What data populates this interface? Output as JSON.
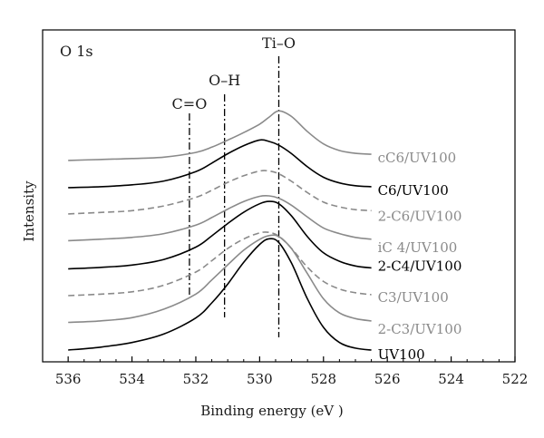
{
  "chart_data": {
    "type": "line",
    "title": "",
    "panel_label": "O 1s",
    "xlabel": "Binding energy (eV )",
    "ylabel": "Intensity",
    "xlim": [
      536.8,
      522
    ],
    "x_reversed": true,
    "x_ticks": [
      536,
      534,
      532,
      530,
      528,
      526,
      524,
      522
    ],
    "y_ticks": [],
    "grid": false,
    "legend": "none",
    "colors": {
      "dark": "#000000",
      "gray": "#8a8a8a",
      "dashed": "#8a8a8a"
    },
    "markers": [
      {
        "label": "Ti–O",
        "x": 529.4
      },
      {
        "label": "O–H",
        "x": 531.1
      },
      {
        "label": "C=O",
        "x": 532.2
      }
    ],
    "series": [
      {
        "name": "cC6/UV100",
        "color": "#8a8a8a",
        "dashed": false,
        "offset": 7,
        "x": [
          536.0,
          535.0,
          534.0,
          533.0,
          532.0,
          531.5,
          531.0,
          530.5,
          530.0,
          529.7,
          529.4,
          529.0,
          528.5,
          528.0,
          527.5,
          527.0,
          526.5
        ],
        "y": [
          0.05,
          0.07,
          0.09,
          0.12,
          0.22,
          0.33,
          0.48,
          0.64,
          0.82,
          0.97,
          1.1,
          0.98,
          0.66,
          0.4,
          0.26,
          0.2,
          0.18
        ]
      },
      {
        "name": "C6/UV100",
        "color": "#000000",
        "dashed": false,
        "offset": 6,
        "x": [
          536.0,
          535.0,
          534.0,
          533.0,
          532.0,
          531.5,
          531.0,
          530.5,
          530.0,
          529.7,
          529.4,
          529.0,
          528.5,
          528.0,
          527.5,
          527.0,
          526.5
        ],
        "y": [
          0.04,
          0.06,
          0.1,
          0.18,
          0.38,
          0.56,
          0.76,
          0.93,
          1.05,
          1.02,
          0.94,
          0.76,
          0.48,
          0.26,
          0.14,
          0.08,
          0.06
        ]
      },
      {
        "name": "2-C6/UV100",
        "color": "#8a8a8a",
        "dashed": true,
        "offset": 5,
        "x": [
          536.0,
          535.0,
          534.0,
          533.0,
          532.0,
          531.5,
          531.0,
          530.5,
          530.0,
          529.7,
          529.4,
          529.0,
          528.5,
          528.0,
          527.5,
          527.0,
          526.5
        ],
        "y": [
          0.05,
          0.08,
          0.12,
          0.22,
          0.4,
          0.55,
          0.72,
          0.86,
          0.96,
          0.96,
          0.9,
          0.74,
          0.5,
          0.3,
          0.2,
          0.14,
          0.12
        ]
      },
      {
        "name": "iC 4/UV100",
        "color": "#8a8a8a",
        "dashed": false,
        "offset": 4,
        "x": [
          536.0,
          535.0,
          534.0,
          533.0,
          532.0,
          531.5,
          531.0,
          530.5,
          530.0,
          529.7,
          529.4,
          529.0,
          528.5,
          528.0,
          527.5,
          527.0,
          526.5
        ],
        "y": [
          0.05,
          0.08,
          0.12,
          0.2,
          0.38,
          0.54,
          0.72,
          0.88,
          0.99,
          1.0,
          0.95,
          0.8,
          0.55,
          0.32,
          0.2,
          0.12,
          0.08
        ]
      },
      {
        "name": "2-C4/UV100",
        "color": "#000000",
        "dashed": false,
        "offset": 3,
        "x": [
          536.0,
          535.0,
          534.0,
          533.0,
          532.0,
          531.5,
          531.0,
          530.5,
          530.0,
          529.7,
          529.4,
          529.0,
          528.5,
          528.0,
          527.5,
          527.0,
          526.5
        ],
        "y": [
          0.02,
          0.05,
          0.1,
          0.22,
          0.48,
          0.72,
          0.98,
          1.22,
          1.4,
          1.45,
          1.4,
          1.14,
          0.7,
          0.36,
          0.18,
          0.08,
          0.04
        ]
      },
      {
        "name": "C3/UV100",
        "color": "#8a8a8a",
        "dashed": true,
        "offset": 2,
        "x": [
          536.0,
          535.0,
          534.0,
          533.0,
          532.0,
          531.5,
          531.0,
          530.5,
          530.0,
          529.7,
          529.4,
          529.0,
          528.5,
          528.0,
          527.5,
          527.0,
          526.5
        ],
        "y": [
          0.02,
          0.05,
          0.1,
          0.24,
          0.52,
          0.76,
          1.02,
          1.22,
          1.35,
          1.36,
          1.28,
          1.02,
          0.62,
          0.32,
          0.16,
          0.08,
          0.04
        ]
      },
      {
        "name": "2-C3/UV100",
        "color": "#8a8a8a",
        "dashed": false,
        "offset": 1,
        "x": [
          536.0,
          535.0,
          534.0,
          533.0,
          532.0,
          531.5,
          531.0,
          530.5,
          530.0,
          529.7,
          529.4,
          529.0,
          528.5,
          528.0,
          527.5,
          527.0,
          526.5
        ],
        "y": [
          0.02,
          0.05,
          0.12,
          0.3,
          0.62,
          0.92,
          1.24,
          1.55,
          1.78,
          1.86,
          1.84,
          1.58,
          1.05,
          0.52,
          0.22,
          0.1,
          0.05
        ]
      },
      {
        "name": "UV100",
        "color": "#000000",
        "dashed": false,
        "offset": 0,
        "x": [
          536.0,
          535.0,
          534.0,
          533.0,
          532.0,
          531.5,
          531.0,
          530.5,
          530.0,
          529.7,
          529.4,
          529.0,
          528.5,
          528.0,
          527.5,
          527.0,
          526.5
        ],
        "y": [
          0.0,
          0.06,
          0.16,
          0.34,
          0.68,
          1.0,
          1.4,
          1.86,
          2.24,
          2.36,
          2.28,
          1.84,
          1.08,
          0.48,
          0.16,
          0.04,
          0.0
        ]
      }
    ]
  }
}
